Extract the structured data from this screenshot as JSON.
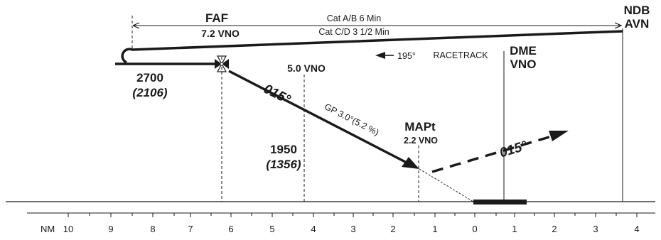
{
  "fix_labels": {
    "faf": "FAF",
    "faf_vno": "7.2 VNO",
    "ndb_line1": "NDB",
    "ndb_line2": "AVN",
    "dme_line1": "DME",
    "dme_line2": "VNO",
    "sdf_vno": "5.0 VNO",
    "mapt": "MAPt",
    "mapt_vno": "2.2 VNO"
  },
  "timing": {
    "cat_ab": "Cat A/B 6 Min",
    "cat_cd": "Cat C/D 3 1/2 Min"
  },
  "racetrack": {
    "heading": "195°",
    "label": "RACETRACK"
  },
  "courses": {
    "final": "015°",
    "missed": "015°",
    "glidepath": "GP 3.0°(5.2 %)"
  },
  "altitudes": {
    "initial": "2700",
    "initial_hat": "(2106)",
    "sdf": "1950",
    "sdf_hat": "(1356)"
  },
  "distance_scale": {
    "unit_label": "NM",
    "ticks": [
      "10",
      "9",
      "8",
      "7",
      "6",
      "5",
      "4",
      "3",
      "2",
      "1",
      "0",
      "1",
      "2",
      "3",
      "4"
    ]
  },
  "colors": {
    "ink": "#1a1a1a",
    "background": "#ffffff"
  }
}
